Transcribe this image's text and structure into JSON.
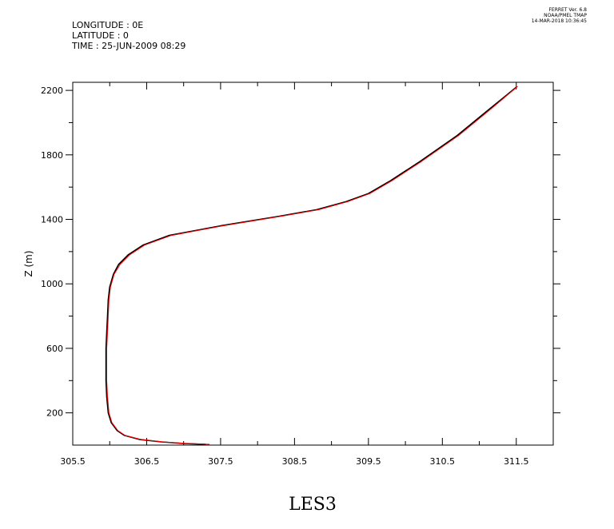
{
  "header": {
    "longitude": "LONGITUDE : 0E",
    "latitude": "LATITUDE : 0",
    "time": "TIME : 25-JUN-2009 08:29"
  },
  "version": {
    "line1": "FERRET Ver. 6.8",
    "line2": "NOAA/PMEL TMAP",
    "line3": "14-MAR-2018 10:36:45"
  },
  "chart_data": {
    "type": "line",
    "title": "",
    "xlabel": "LES3",
    "ylabel": "Z (m)",
    "xlim": [
      305.5,
      312.0
    ],
    "ylim": [
      0,
      2250
    ],
    "x_ticks": [
      305.5,
      306.5,
      307.5,
      308.5,
      309.5,
      310.5,
      311.5
    ],
    "x_tick_labels": [
      "305.5",
      "306.5",
      "307.5",
      "308.5",
      "309.5",
      "310.5",
      "311.5"
    ],
    "y_ticks": [
      200,
      600,
      1000,
      1400,
      1800,
      2200
    ],
    "y_tick_labels": [
      "200",
      "600",
      "1000",
      "1400",
      "1800",
      "2200"
    ],
    "grid": false,
    "series": [
      {
        "color": "#000000",
        "points": [
          [
            307.3,
            5
          ],
          [
            307.0,
            10
          ],
          [
            306.7,
            20
          ],
          [
            306.4,
            35
          ],
          [
            306.2,
            60
          ],
          [
            306.1,
            90
          ],
          [
            306.02,
            140
          ],
          [
            305.98,
            200
          ],
          [
            305.96,
            300
          ],
          [
            305.95,
            400
          ],
          [
            305.95,
            500
          ],
          [
            305.95,
            600
          ],
          [
            305.96,
            700
          ],
          [
            305.97,
            800
          ],
          [
            305.98,
            900
          ],
          [
            306.0,
            980
          ],
          [
            306.05,
            1060
          ],
          [
            306.12,
            1120
          ],
          [
            306.25,
            1180
          ],
          [
            306.45,
            1240
          ],
          [
            306.8,
            1300
          ],
          [
            307.5,
            1360
          ],
          [
            308.3,
            1420
          ],
          [
            308.8,
            1460
          ],
          [
            309.2,
            1510
          ],
          [
            309.5,
            1560
          ],
          [
            309.8,
            1640
          ],
          [
            310.2,
            1760
          ],
          [
            310.7,
            1920
          ],
          [
            311.1,
            2070
          ],
          [
            311.5,
            2220
          ]
        ]
      },
      {
        "color": "#ff0000",
        "points": [
          [
            307.35,
            5
          ],
          [
            307.05,
            10
          ],
          [
            306.72,
            20
          ],
          [
            306.42,
            35
          ],
          [
            306.21,
            60
          ],
          [
            306.11,
            90
          ],
          [
            306.03,
            140
          ],
          [
            305.99,
            200
          ],
          [
            305.97,
            300
          ],
          [
            305.96,
            400
          ],
          [
            305.96,
            500
          ],
          [
            305.96,
            600
          ],
          [
            305.97,
            700
          ],
          [
            305.98,
            800
          ],
          [
            305.99,
            900
          ],
          [
            306.01,
            980
          ],
          [
            306.06,
            1060
          ],
          [
            306.14,
            1120
          ],
          [
            306.27,
            1180
          ],
          [
            306.47,
            1240
          ],
          [
            306.83,
            1300
          ],
          [
            307.53,
            1360
          ],
          [
            308.33,
            1420
          ],
          [
            308.83,
            1460
          ],
          [
            309.22,
            1510
          ],
          [
            309.52,
            1560
          ],
          [
            309.82,
            1640
          ],
          [
            310.22,
            1760
          ],
          [
            310.72,
            1920
          ],
          [
            311.12,
            2070
          ],
          [
            311.52,
            2225
          ]
        ]
      }
    ]
  }
}
